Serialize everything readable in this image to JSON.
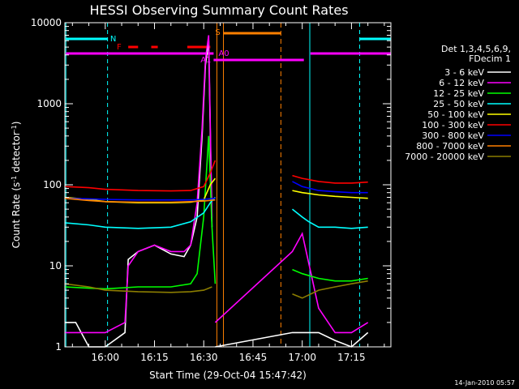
{
  "chart_data": {
    "type": "line",
    "title": "HESSI Observing Summary Count Rates",
    "xlabel": "Start Time (29-Oct-04 15:47:42)",
    "ylabel_main": "Count Rate (s",
    "ylabel_sup1": "-1",
    "ylabel_mid": " detector",
    "ylabel_sup2": "-1",
    "ylabel_end": ")",
    "y_scale": "log",
    "xlim": [
      "15:47:42",
      "17:27:00"
    ],
    "ylim": [
      1,
      10000
    ],
    "x_ticks": [
      "16:00",
      "16:15",
      "16:30",
      "16:45",
      "17:00",
      "17:15"
    ],
    "x_tick_minutes": [
      960,
      975,
      990,
      1005,
      1020,
      1035
    ],
    "y_ticks": [
      "1",
      "10",
      "100",
      "1000",
      "10000"
    ],
    "y_tick_values": [
      1,
      10,
      100,
      1000,
      10000
    ],
    "legend_header": [
      "Det 1,3,4,5,6,9,",
      "FDecim 1"
    ],
    "legend_placement": "right",
    "footer": "14-Jan-2010 05:57",
    "series": [
      {
        "name": "3 - 6 keV",
        "color": "#ffffff",
        "x": [
          947.7,
          951,
          955,
          960,
          966,
          967,
          970,
          975,
          980,
          984,
          986,
          988,
          989.5,
          990.5,
          991.5,
          992.5,
          993.5,
          1017,
          1020,
          1025,
          1030,
          1035,
          1040
        ],
        "y": [
          2,
          2,
          1,
          1,
          1.5,
          12,
          15,
          18,
          14,
          13,
          18,
          40,
          400,
          3000,
          6000,
          30,
          1,
          1.5,
          1.5,
          1.5,
          1.2,
          1,
          1.5
        ],
        "segment_breaks": [
          16
        ]
      },
      {
        "name": "6 - 12 keV",
        "color": "#ff00ff",
        "x": [
          947.7,
          955,
          960,
          966,
          967,
          970,
          975,
          980,
          984,
          986,
          988,
          989.5,
          990.5,
          991.5,
          992.5,
          993.5,
          1017,
          1020,
          1025,
          1030,
          1035,
          1040
        ],
        "y": [
          1.5,
          1.5,
          1.5,
          2,
          10,
          15,
          18,
          15,
          15,
          18,
          60,
          500,
          3500,
          7000,
          40,
          2,
          15,
          25,
          3,
          1.5,
          1.5,
          2
        ],
        "segment_breaks": [
          15
        ]
      },
      {
        "name": "12 - 25 keV",
        "color": "#00ff00",
        "x": [
          947.7,
          955,
          960,
          970,
          980,
          986,
          988,
          990,
          991.5,
          992.5,
          993.5,
          1017,
          1020,
          1025,
          1030,
          1035,
          1040
        ],
        "y": [
          5.5,
          5.3,
          5.2,
          5.5,
          5.5,
          6,
          8,
          40,
          400,
          30,
          6,
          9,
          8,
          7,
          6.5,
          6.5,
          7
        ],
        "segment_breaks": [
          11
        ]
      },
      {
        "name": "25 - 50 keV",
        "color": "#00ffff",
        "x": [
          947.7,
          955,
          960,
          970,
          980,
          986,
          990,
          992,
          993.5,
          1017,
          1020,
          1022,
          1025,
          1030,
          1035,
          1040
        ],
        "y": [
          34,
          32,
          30,
          29,
          30,
          35,
          45,
          60,
          70,
          50,
          40,
          35,
          30,
          30,
          29,
          30
        ],
        "segment_breaks": [
          9
        ]
      },
      {
        "name": "50 - 100 keV",
        "color": "#ffff00",
        "x": [
          947.7,
          955,
          960,
          970,
          980,
          986,
          990,
          992,
          993.5,
          1017,
          1020,
          1025,
          1030,
          1035,
          1040
        ],
        "y": [
          70,
          66,
          62,
          60,
          60,
          61,
          65,
          100,
          120,
          85,
          80,
          75,
          72,
          70,
          68
        ],
        "segment_breaks": [
          9
        ]
      },
      {
        "name": "100 - 300 keV",
        "color": "#ff0000",
        "x": [
          947.7,
          955,
          960,
          970,
          980,
          986,
          990,
          992,
          993.5,
          1017,
          1020,
          1025,
          1030,
          1035,
          1040
        ],
        "y": [
          95,
          92,
          88,
          85,
          84,
          85,
          95,
          140,
          200,
          130,
          120,
          110,
          105,
          105,
          108
        ],
        "segment_breaks": [
          9
        ]
      },
      {
        "name": "300 - 800 keV",
        "color": "#0000ff",
        "x": [
          947.7,
          955,
          960,
          970,
          980,
          986,
          990,
          993.5,
          1017,
          1020,
          1025,
          1030,
          1035,
          1040
        ],
        "y": [
          68,
          67,
          66,
          65,
          65,
          65,
          66,
          68,
          110,
          95,
          85,
          82,
          80,
          80
        ],
        "segment_breaks": [
          8
        ]
      },
      {
        "name": "800 - 7000 keV",
        "color": "#ff8000",
        "x": [
          947.7,
          955,
          960,
          970,
          980,
          986,
          990,
          993.5
        ],
        "y": [
          68,
          64,
          62,
          61,
          61,
          62,
          63,
          65
        ],
        "segment_breaks": []
      },
      {
        "name": "7000 - 20000 keV",
        "color": "#8b7d00",
        "x": [
          947.7,
          955,
          960,
          970,
          980,
          986,
          990,
          992.5,
          1017,
          1020,
          1025,
          1030,
          1035,
          1040
        ],
        "y": [
          6,
          5.5,
          5,
          4.8,
          4.7,
          4.8,
          5,
          5.5,
          4.5,
          4,
          5,
          5.5,
          6,
          6.5
        ],
        "segment_breaks": [
          8
        ]
      }
    ],
    "flag_labels": [
      {
        "label": "N",
        "color": "#00ffff"
      },
      {
        "label": "F",
        "color": "#ff0000"
      },
      {
        "label": "S",
        "color": "#ff8000"
      },
      {
        "label": "A0",
        "color": "#ff00ff"
      },
      {
        "label": "A1",
        "color": "#ff00ff"
      }
    ]
  }
}
